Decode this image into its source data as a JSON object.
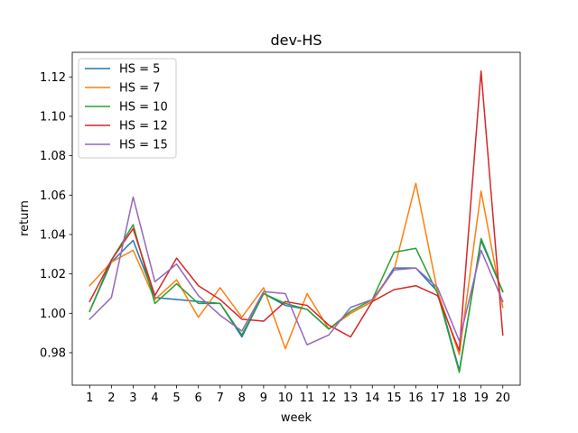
{
  "chart_data": {
    "type": "line",
    "title": "dev-HS",
    "xlabel": "week",
    "ylabel": "return",
    "x": [
      1,
      2,
      3,
      4,
      5,
      6,
      7,
      8,
      9,
      10,
      11,
      12,
      13,
      14,
      15,
      16,
      17,
      18,
      19,
      20
    ],
    "x_ticks": [
      "1",
      "2",
      "3",
      "4",
      "5",
      "6",
      "7",
      "8",
      "9",
      "10",
      "11",
      "12",
      "13",
      "14",
      "15",
      "16",
      "17",
      "18",
      "19",
      "20"
    ],
    "y_ticks": [
      "0.98",
      "1.00",
      "1.02",
      "1.04",
      "1.06",
      "1.08",
      "1.10",
      "1.12"
    ],
    "xlim": [
      0.2,
      20.8
    ],
    "ylim": [
      0.9635,
      1.1325
    ],
    "grid": false,
    "legend_position": "upper left",
    "series": [
      {
        "name": "HS = 5",
        "color": "#1f77b4",
        "values": [
          1.001,
          1.026,
          1.037,
          1.008,
          1.007,
          1.006,
          1.005,
          0.988,
          1.01,
          1.004,
          1.002,
          0.992,
          1.0,
          1.006,
          1.023,
          1.023,
          1.011,
          0.971,
          1.037,
          1.011
        ]
      },
      {
        "name": "HS = 7",
        "color": "#ff7f0e",
        "values": [
          1.014,
          1.026,
          1.032,
          1.007,
          1.017,
          0.998,
          1.013,
          0.998,
          1.013,
          0.982,
          1.01,
          0.992,
          1.0,
          1.006,
          1.022,
          1.066,
          1.011,
          0.979,
          1.062,
          1.003
        ]
      },
      {
        "name": "HS = 10",
        "color": "#2ca02c",
        "values": [
          1.001,
          1.027,
          1.045,
          1.005,
          1.015,
          1.005,
          1.005,
          0.989,
          1.01,
          1.005,
          1.002,
          0.992,
          1.001,
          1.007,
          1.031,
          1.033,
          1.01,
          0.97,
          1.038,
          1.011
        ]
      },
      {
        "name": "HS = 12",
        "color": "#d62728",
        "values": [
          1.006,
          1.027,
          1.043,
          1.009,
          1.028,
          1.014,
          1.007,
          0.997,
          0.996,
          1.006,
          1.004,
          0.994,
          0.988,
          1.006,
          1.012,
          1.014,
          1.009,
          0.981,
          1.123,
          0.989
        ]
      },
      {
        "name": "HS = 15",
        "color": "#9467bd",
        "values": [
          0.997,
          1.008,
          1.059,
          1.016,
          1.025,
          1.009,
          0.999,
          0.991,
          1.011,
          1.01,
          0.984,
          0.989,
          1.003,
          1.007,
          1.022,
          1.023,
          1.013,
          0.986,
          1.032,
          1.006
        ]
      }
    ]
  }
}
